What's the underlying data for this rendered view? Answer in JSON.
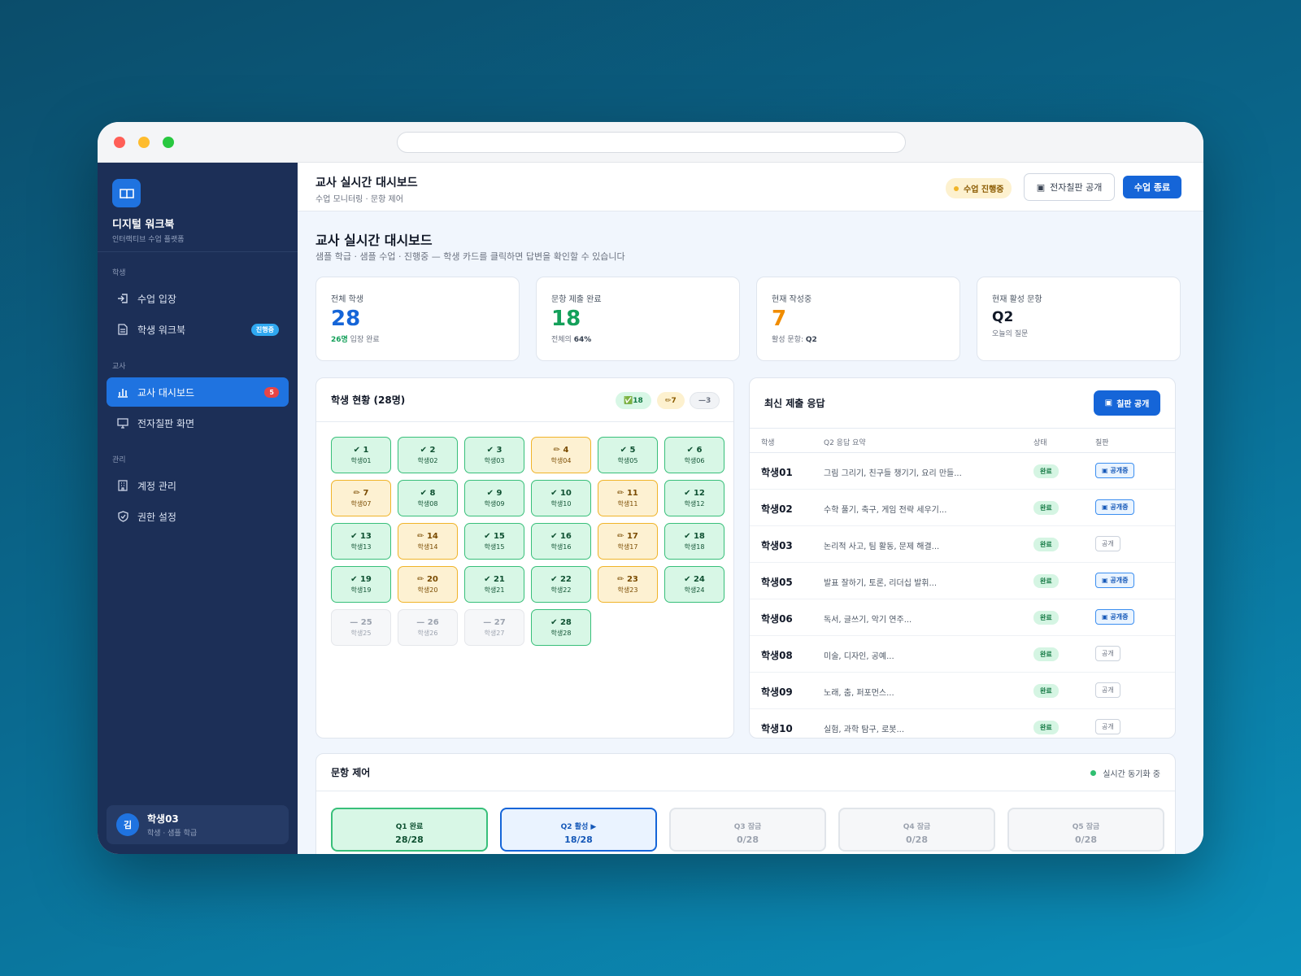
{
  "sidebar": {
    "brand_title": "디지털 워크북",
    "brand_sub": "인터랙티브 수업 플랫폼",
    "sections": {
      "student": "학생",
      "teacher": "교사",
      "admin": "관리"
    },
    "items": {
      "enter_class": "수업 입장",
      "student_workbook": "학생 워크북",
      "student_workbook_badge": "진행중",
      "teacher_dashboard": "교사 대시보드",
      "teacher_dashboard_badge": "5",
      "blackboard_screen": "전자칠판 화면",
      "account_mgmt": "계정 관리",
      "permission_settings": "권한 설정"
    },
    "user": {
      "avatar_initial": "김",
      "name": "학생03",
      "sub": "학생 · 샘플 학급"
    }
  },
  "topbar": {
    "title": "교사 실시간 대시보드",
    "subtitle": "수업 모니터링 · 문항 제어",
    "status_pill": "수업 진행중",
    "board_button": "전자칠판 공개",
    "end_button": "수업 종료"
  },
  "page": {
    "title": "교사 실시간 대시보드",
    "subtitle": "샘플 학급 · 샘플 수업 · 진행중 — 학생 카드를 클릭하면 답변을 확인할 수 있습니다"
  },
  "stats": {
    "total": {
      "label": "전체 학생",
      "value": "28",
      "foot_hl": "26명",
      "foot": " 입장 완료"
    },
    "submitted": {
      "label": "문항 제출 완료",
      "value": "18",
      "foot": "전체의 ",
      "foot_b": "64%"
    },
    "writing": {
      "label": "현재 작성중",
      "value": "7",
      "foot": "활성 문항: ",
      "foot_b": "Q2"
    },
    "active_q": {
      "label": "현재 활성 문항",
      "value": "Q2",
      "foot": "오늘의 질문"
    }
  },
  "students_panel": {
    "title": "학생 현황 (28명)",
    "chip_done": "✅18",
    "chip_writing": "✏7",
    "chip_empty": "—3",
    "students": [
      {
        "n": "✔ 1",
        "s": "학생01",
        "st": "done"
      },
      {
        "n": "✔ 2",
        "s": "학생02",
        "st": "done"
      },
      {
        "n": "✔ 3",
        "s": "학생03",
        "st": "done"
      },
      {
        "n": "✏ 4",
        "s": "학생04",
        "st": "writing"
      },
      {
        "n": "✔ 5",
        "s": "학생05",
        "st": "done"
      },
      {
        "n": "✔ 6",
        "s": "학생06",
        "st": "done"
      },
      {
        "n": "✏ 7",
        "s": "학생07",
        "st": "writing"
      },
      {
        "n": "✔ 8",
        "s": "학생08",
        "st": "done"
      },
      {
        "n": "✔ 9",
        "s": "학생09",
        "st": "done"
      },
      {
        "n": "✔ 10",
        "s": "학생10",
        "st": "done"
      },
      {
        "n": "✏ 11",
        "s": "학생11",
        "st": "writing"
      },
      {
        "n": "✔ 12",
        "s": "학생12",
        "st": "done"
      },
      {
        "n": "✔ 13",
        "s": "학생13",
        "st": "done"
      },
      {
        "n": "✏ 14",
        "s": "학생14",
        "st": "writing"
      },
      {
        "n": "✔ 15",
        "s": "학생15",
        "st": "done"
      },
      {
        "n": "✔ 16",
        "s": "학생16",
        "st": "done"
      },
      {
        "n": "✏ 17",
        "s": "학생17",
        "st": "writing"
      },
      {
        "n": "✔ 18",
        "s": "학생18",
        "st": "done"
      },
      {
        "n": "✔ 19",
        "s": "학생19",
        "st": "done"
      },
      {
        "n": "✏ 20",
        "s": "학생20",
        "st": "writing"
      },
      {
        "n": "✔ 21",
        "s": "학생21",
        "st": "done"
      },
      {
        "n": "✔ 22",
        "s": "학생22",
        "st": "done"
      },
      {
        "n": "✏ 23",
        "s": "학생23",
        "st": "writing"
      },
      {
        "n": "✔ 24",
        "s": "학생24",
        "st": "done"
      },
      {
        "n": "— 25",
        "s": "학생25",
        "st": "empty"
      },
      {
        "n": "— 26",
        "s": "학생26",
        "st": "empty"
      },
      {
        "n": "— 27",
        "s": "학생27",
        "st": "empty"
      },
      {
        "n": "✔ 28",
        "s": "학생28",
        "st": "done"
      }
    ]
  },
  "responses_panel": {
    "title": "최신 제출 응답",
    "publish_button": "칠판 공개",
    "headers": {
      "student": "학생",
      "summary": "Q2 응답 요약",
      "status": "상태",
      "board": "칠판"
    },
    "rows": [
      {
        "name": "학생01",
        "summary": "그림 그리기, 친구들 챙기기, 요리 만들...",
        "status": "완료",
        "board": "공개중",
        "on": true
      },
      {
        "name": "학생02",
        "summary": "수학 풀기, 축구, 게임 전략 세우기...",
        "status": "완료",
        "board": "공개중",
        "on": true
      },
      {
        "name": "학생03",
        "summary": "논리적 사고, 팀 활동, 문제 해결...",
        "status": "완료",
        "board": "공개",
        "on": false
      },
      {
        "name": "학생05",
        "summary": "발표 잘하기, 토론, 리더십 발휘...",
        "status": "완료",
        "board": "공개중",
        "on": true
      },
      {
        "name": "학생06",
        "summary": "독서, 글쓰기, 악기 연주...",
        "status": "완료",
        "board": "공개중",
        "on": true
      },
      {
        "name": "학생08",
        "summary": "미술, 디자인, 공예...",
        "status": "완료",
        "board": "공개",
        "on": false
      },
      {
        "name": "학생09",
        "summary": "노래, 춤, 퍼포먼스...",
        "status": "완료",
        "board": "공개",
        "on": false
      },
      {
        "name": "학생10",
        "summary": "실험, 과학 탐구, 로봇...",
        "status": "완료",
        "board": "공개",
        "on": false
      }
    ]
  },
  "question_panel": {
    "title": "문항 제어",
    "sync": "실시간 동기화 중",
    "tabs": [
      {
        "label": "Q1 완료",
        "value": "28/28",
        "st": "done"
      },
      {
        "label": "Q2 활성 ▶",
        "value": "18/28",
        "st": "active"
      },
      {
        "label": "Q3 잠금",
        "value": "0/28",
        "st": "locked"
      },
      {
        "label": "Q4 잠금",
        "value": "0/28",
        "st": "locked"
      },
      {
        "label": "Q5 잠금",
        "value": "0/28",
        "st": "locked"
      }
    ]
  },
  "colors": {
    "primary": "#1565d8",
    "sidebar": "#1c2f57",
    "done": "#38bf7a",
    "writing": "#f0b429"
  }
}
